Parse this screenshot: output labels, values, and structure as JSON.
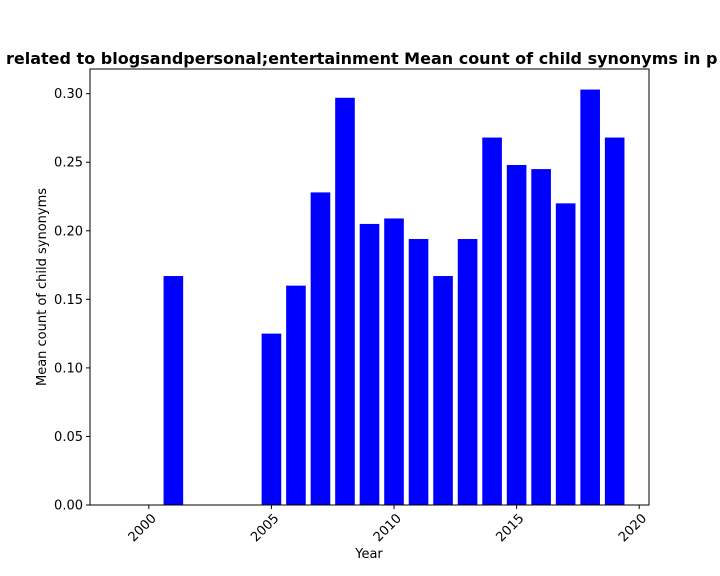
{
  "chart_data": {
    "type": "bar",
    "title": "related to blogsandpersonal;entertainment Mean count of child synonyms in p",
    "xlabel": "Year",
    "ylabel": "Mean count of child synonyms",
    "x": [
      2001,
      2005,
      2006,
      2007,
      2008,
      2009,
      2010,
      2011,
      2012,
      2013,
      2014,
      2015,
      2016,
      2017,
      2018,
      2019
    ],
    "values": [
      0.167,
      0.125,
      0.16,
      0.228,
      0.297,
      0.205,
      0.209,
      0.194,
      0.167,
      0.194,
      0.268,
      0.248,
      0.245,
      0.22,
      0.303,
      0.268
    ],
    "xlim": [
      1997.6,
      2020.4
    ],
    "ylim": [
      0,
      0.318
    ],
    "xticks": [
      "2000",
      "2005",
      "2010",
      "2015",
      "2020"
    ],
    "yticks": [
      "0.00",
      "0.05",
      "0.10",
      "0.15",
      "0.20",
      "0.25",
      "0.30"
    ],
    "bar_color": "#0000ff",
    "grid": false,
    "legend": false
  }
}
